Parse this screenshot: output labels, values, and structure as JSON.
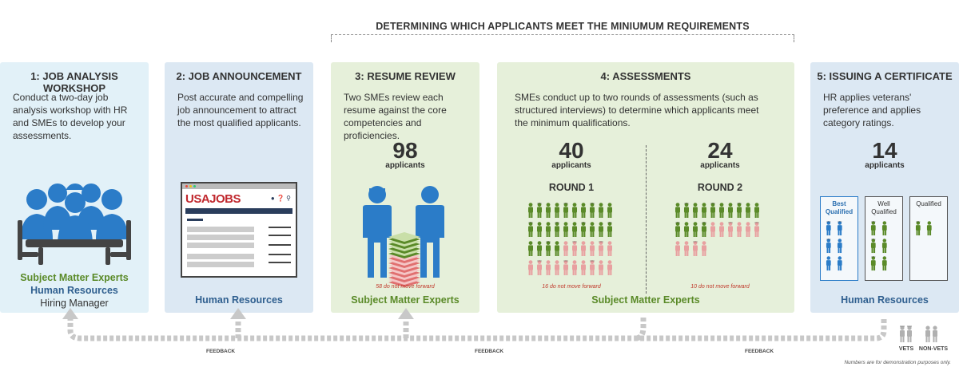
{
  "banner": "DETERMINING WHICH APPLICANTS MEET THE MINIUMUM REQUIREMENTS",
  "steps": [
    {
      "title": "1: JOB ANALYSIS WORKSHOP",
      "desc": "Conduct a two-day job analysis workshop with HR and SMEs to develop your assessments.",
      "roles": [
        "Subject Matter Experts",
        "Human Resources",
        "Hiring Manager"
      ]
    },
    {
      "title": "2: JOB ANNOUNCEMENT",
      "desc": "Post accurate and compelling job announcement to attract the most qualified applicants.",
      "site_logo": "USAJOBS",
      "roles": [
        "Human Resources"
      ]
    },
    {
      "title": "3: RESUME REVIEW",
      "desc": "Two SMEs review each resume against the core competencies and proficiencies.",
      "count": "98",
      "count_label": "applicants",
      "note": "58 do not move forward",
      "passed": 40,
      "rejected": 58,
      "roles": [
        "Subject Matter Experts"
      ]
    },
    {
      "title": "4:  ASSESSMENTS",
      "desc": "SMEs conduct up to two rounds of assessments (such as structured interviews) to determine which applicants meet the minimum qualifications.",
      "rounds": [
        {
          "count": "40",
          "count_label": "applicants",
          "label": "ROUND 1",
          "note": "16 do not move forward",
          "passed": 24,
          "rejected": 16
        },
        {
          "count": "24",
          "count_label": "applicants",
          "label": "ROUND 2",
          "note": "10 do not move forward",
          "passed": 14,
          "rejected": 10
        }
      ],
      "roles": [
        "Subject Matter Experts"
      ]
    },
    {
      "title": "5: ISSUING A CERTIFICATE",
      "desc": "HR applies veterans' preference and applies category ratings.",
      "count": "14",
      "count_label": "applicants",
      "categories": [
        {
          "label": "Best Qualified",
          "vets": 3,
          "nonvets": 3
        },
        {
          "label": "Well Qualified",
          "vets": 0,
          "nonvets": 6
        },
        {
          "label": "Qualified",
          "vets": 0,
          "nonvets": 2
        }
      ],
      "roles": [
        "Human Resources"
      ]
    }
  ],
  "feedback_labels": [
    "FEEDBACK",
    "FEEDBACK",
    "FEEDBACK"
  ],
  "legend": {
    "vets": "VETS",
    "nonvets": "NON-VETS"
  },
  "disclaimer": "Numbers are for demonstration purposes only.",
  "colors": {
    "green": "#5a8a28",
    "pink": "#e8a0a0",
    "blue": "#2b7cc8",
    "gray": "#b0b0b0"
  }
}
